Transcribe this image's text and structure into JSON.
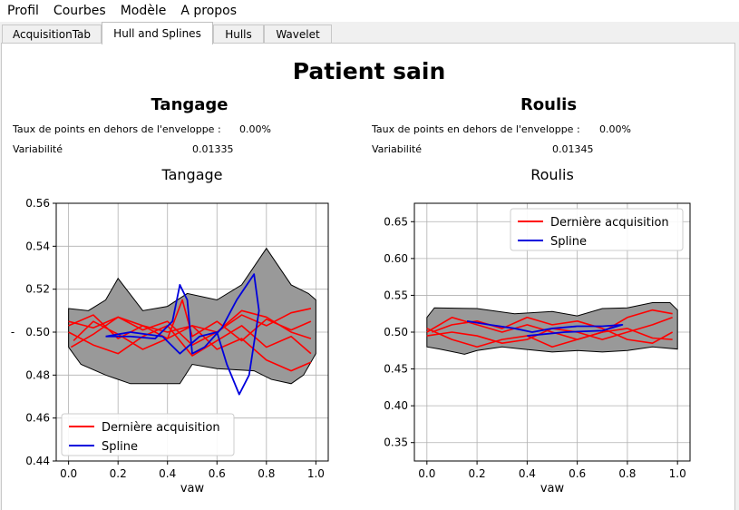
{
  "menu": [
    "Profil",
    "Courbes",
    "Modèle",
    "A propos"
  ],
  "tabs": [
    {
      "label": "AcquisitionTab",
      "active": false
    },
    {
      "label": "Hull and Splines",
      "active": true
    },
    {
      "label": "Hulls",
      "active": false
    },
    {
      "label": "Wavelet",
      "active": false
    }
  ],
  "page_title": "Patient sain",
  "sections": [
    {
      "title": "Tangage",
      "outside_label": "Taux de points en dehors de l'enveloppe :",
      "outside_value": "0.00%",
      "variability_label": "Variabilité",
      "variability_value": "0.01335"
    },
    {
      "title": "Roulis",
      "outside_label": "Taux de points en dehors de l'enveloppe :",
      "outside_value": "0.00%",
      "variability_label": "Variabilité",
      "variability_value": "0.01345"
    }
  ],
  "colors": {
    "acquisition": "#ff0000",
    "spline": "#0000dd",
    "hull": "#999999"
  },
  "chart_data": [
    {
      "type": "line",
      "title": "Tangage",
      "xlabel": "vaw",
      "ylabel": "-",
      "xlim": [
        -0.05,
        1.05
      ],
      "ylim": [
        0.44,
        0.56
      ],
      "xticks": [
        "0.0",
        "0.2",
        "0.4",
        "0.6",
        "0.8",
        "1.0"
      ],
      "yticks": [
        "0.44",
        "0.46",
        "0.48",
        "0.50",
        "0.52",
        "0.54",
        "0.56"
      ],
      "grid": true,
      "legend_position": "lower-left",
      "legend": [
        "Dernière acquisition",
        "Spline"
      ],
      "hull_upper": [
        [
          0.0,
          0.511
        ],
        [
          0.08,
          0.51
        ],
        [
          0.15,
          0.515
        ],
        [
          0.2,
          0.525
        ],
        [
          0.3,
          0.51
        ],
        [
          0.4,
          0.512
        ],
        [
          0.48,
          0.518
        ],
        [
          0.6,
          0.515
        ],
        [
          0.7,
          0.522
        ],
        [
          0.8,
          0.539
        ],
        [
          0.9,
          0.522
        ],
        [
          0.97,
          0.518
        ],
        [
          1.0,
          0.515
        ]
      ],
      "hull_lower": [
        [
          1.0,
          0.49
        ],
        [
          0.95,
          0.48
        ],
        [
          0.9,
          0.476
        ],
        [
          0.82,
          0.478
        ],
        [
          0.75,
          0.482
        ],
        [
          0.6,
          0.483
        ],
        [
          0.5,
          0.485
        ],
        [
          0.45,
          0.476
        ],
        [
          0.35,
          0.476
        ],
        [
          0.25,
          0.476
        ],
        [
          0.15,
          0.48
        ],
        [
          0.05,
          0.485
        ],
        [
          0.0,
          0.493
        ]
      ],
      "acquisitions": [
        [
          [
            0.0,
            0.505
          ],
          [
            0.1,
            0.502
          ],
          [
            0.2,
            0.507
          ],
          [
            0.3,
            0.501
          ],
          [
            0.4,
            0.505
          ],
          [
            0.5,
            0.494
          ],
          [
            0.6,
            0.5
          ],
          [
            0.7,
            0.508
          ],
          [
            0.8,
            0.503
          ],
          [
            0.9,
            0.509
          ],
          [
            0.98,
            0.511
          ]
        ],
        [
          [
            0.0,
            0.5
          ],
          [
            0.1,
            0.494
          ],
          [
            0.2,
            0.49
          ],
          [
            0.3,
            0.498
          ],
          [
            0.4,
            0.503
          ],
          [
            0.5,
            0.489
          ],
          [
            0.6,
            0.496
          ],
          [
            0.7,
            0.503
          ],
          [
            0.8,
            0.493
          ],
          [
            0.9,
            0.498
          ],
          [
            0.98,
            0.49
          ]
        ],
        [
          [
            0.02,
            0.496
          ],
          [
            0.1,
            0.505
          ],
          [
            0.2,
            0.499
          ],
          [
            0.3,
            0.492
          ],
          [
            0.4,
            0.497
          ],
          [
            0.46,
            0.515
          ],
          [
            0.5,
            0.498
          ],
          [
            0.6,
            0.505
          ],
          [
            0.7,
            0.496
          ],
          [
            0.8,
            0.506
          ],
          [
            0.9,
            0.501
          ],
          [
            0.98,
            0.505
          ]
        ],
        [
          [
            0.0,
            0.503
          ],
          [
            0.1,
            0.508
          ],
          [
            0.2,
            0.497
          ],
          [
            0.3,
            0.503
          ],
          [
            0.4,
            0.497
          ],
          [
            0.5,
            0.503
          ],
          [
            0.6,
            0.492
          ],
          [
            0.7,
            0.497
          ],
          [
            0.8,
            0.487
          ],
          [
            0.9,
            0.482
          ],
          [
            0.98,
            0.486
          ]
        ],
        [
          [
            0.01,
            0.493
          ],
          [
            0.1,
            0.499
          ],
          [
            0.2,
            0.507
          ],
          [
            0.3,
            0.503
          ],
          [
            0.4,
            0.5
          ],
          [
            0.5,
            0.503
          ],
          [
            0.6,
            0.5
          ],
          [
            0.7,
            0.51
          ],
          [
            0.8,
            0.507
          ],
          [
            0.9,
            0.5
          ],
          [
            0.98,
            0.497
          ]
        ]
      ],
      "spline": [
        [
          0.15,
          0.498
        ],
        [
          0.25,
          0.498
        ],
        [
          0.35,
          0.497
        ],
        [
          0.42,
          0.505
        ],
        [
          0.45,
          0.522
        ],
        [
          0.48,
          0.515
        ],
        [
          0.5,
          0.49
        ],
        [
          0.55,
          0.493
        ],
        [
          0.62,
          0.502
        ],
        [
          0.68,
          0.515
        ],
        [
          0.75,
          0.527
        ],
        [
          0.77,
          0.51
        ],
        [
          0.73,
          0.48
        ],
        [
          0.69,
          0.471
        ],
        [
          0.64,
          0.485
        ],
        [
          0.6,
          0.5
        ],
        [
          0.53,
          0.498
        ],
        [
          0.45,
          0.49
        ],
        [
          0.38,
          0.498
        ],
        [
          0.25,
          0.5
        ],
        [
          0.15,
          0.498
        ]
      ]
    },
    {
      "type": "line",
      "title": "Roulis",
      "xlabel": "vaw",
      "ylabel": "",
      "xlim": [
        -0.05,
        1.05
      ],
      "ylim": [
        0.325,
        0.675
      ],
      "xticks": [
        "0.0",
        "0.2",
        "0.4",
        "0.6",
        "0.8",
        "1.0"
      ],
      "yticks": [
        "0.35",
        "0.40",
        "0.45",
        "0.50",
        "0.55",
        "0.60",
        "0.65"
      ],
      "grid": true,
      "legend_position": "upper-right",
      "legend": [
        "Dernière acquisition",
        "Spline"
      ],
      "hull_upper": [
        [
          0.0,
          0.52
        ],
        [
          0.03,
          0.533
        ],
        [
          0.2,
          0.532
        ],
        [
          0.35,
          0.525
        ],
        [
          0.5,
          0.528
        ],
        [
          0.6,
          0.522
        ],
        [
          0.7,
          0.532
        ],
        [
          0.8,
          0.533
        ],
        [
          0.9,
          0.54
        ],
        [
          0.97,
          0.54
        ],
        [
          1.0,
          0.53
        ]
      ],
      "hull_lower": [
        [
          1.0,
          0.477
        ],
        [
          0.9,
          0.48
        ],
        [
          0.8,
          0.475
        ],
        [
          0.7,
          0.473
        ],
        [
          0.6,
          0.475
        ],
        [
          0.5,
          0.473
        ],
        [
          0.38,
          0.477
        ],
        [
          0.3,
          0.48
        ],
        [
          0.2,
          0.475
        ],
        [
          0.15,
          0.47
        ],
        [
          0.05,
          0.477
        ],
        [
          0.0,
          0.48
        ]
      ],
      "acquisitions": [
        [
          [
            0.0,
            0.5
          ],
          [
            0.1,
            0.52
          ],
          [
            0.2,
            0.51
          ],
          [
            0.3,
            0.5
          ],
          [
            0.4,
            0.51
          ],
          [
            0.5,
            0.5
          ],
          [
            0.6,
            0.49
          ],
          [
            0.7,
            0.5
          ],
          [
            0.8,
            0.52
          ],
          [
            0.9,
            0.53
          ],
          [
            0.98,
            0.525
          ]
        ],
        [
          [
            0.0,
            0.505
          ],
          [
            0.1,
            0.49
          ],
          [
            0.2,
            0.48
          ],
          [
            0.3,
            0.49
          ],
          [
            0.4,
            0.495
          ],
          [
            0.5,
            0.48
          ],
          [
            0.6,
            0.49
          ],
          [
            0.7,
            0.5
          ],
          [
            0.8,
            0.505
          ],
          [
            0.9,
            0.492
          ],
          [
            0.98,
            0.49
          ]
        ],
        [
          [
            0.02,
            0.5
          ],
          [
            0.1,
            0.51
          ],
          [
            0.2,
            0.515
          ],
          [
            0.3,
            0.505
          ],
          [
            0.4,
            0.52
          ],
          [
            0.5,
            0.51
          ],
          [
            0.6,
            0.515
          ],
          [
            0.7,
            0.505
          ],
          [
            0.8,
            0.49
          ],
          [
            0.9,
            0.485
          ],
          [
            0.98,
            0.5
          ]
        ],
        [
          [
            0.0,
            0.495
          ],
          [
            0.1,
            0.5
          ],
          [
            0.2,
            0.495
          ],
          [
            0.3,
            0.485
          ],
          [
            0.4,
            0.49
          ],
          [
            0.5,
            0.505
          ],
          [
            0.6,
            0.5
          ],
          [
            0.7,
            0.49
          ],
          [
            0.8,
            0.5
          ],
          [
            0.9,
            0.51
          ],
          [
            0.98,
            0.52
          ]
        ]
      ],
      "spline": [
        [
          0.16,
          0.515
        ],
        [
          0.25,
          0.51
        ],
        [
          0.35,
          0.505
        ],
        [
          0.42,
          0.5
        ],
        [
          0.5,
          0.505
        ],
        [
          0.6,
          0.508
        ],
        [
          0.7,
          0.508
        ],
        [
          0.78,
          0.51
        ],
        [
          0.7,
          0.502
        ],
        [
          0.55,
          0.5
        ],
        [
          0.4,
          0.495
        ]
      ]
    }
  ]
}
